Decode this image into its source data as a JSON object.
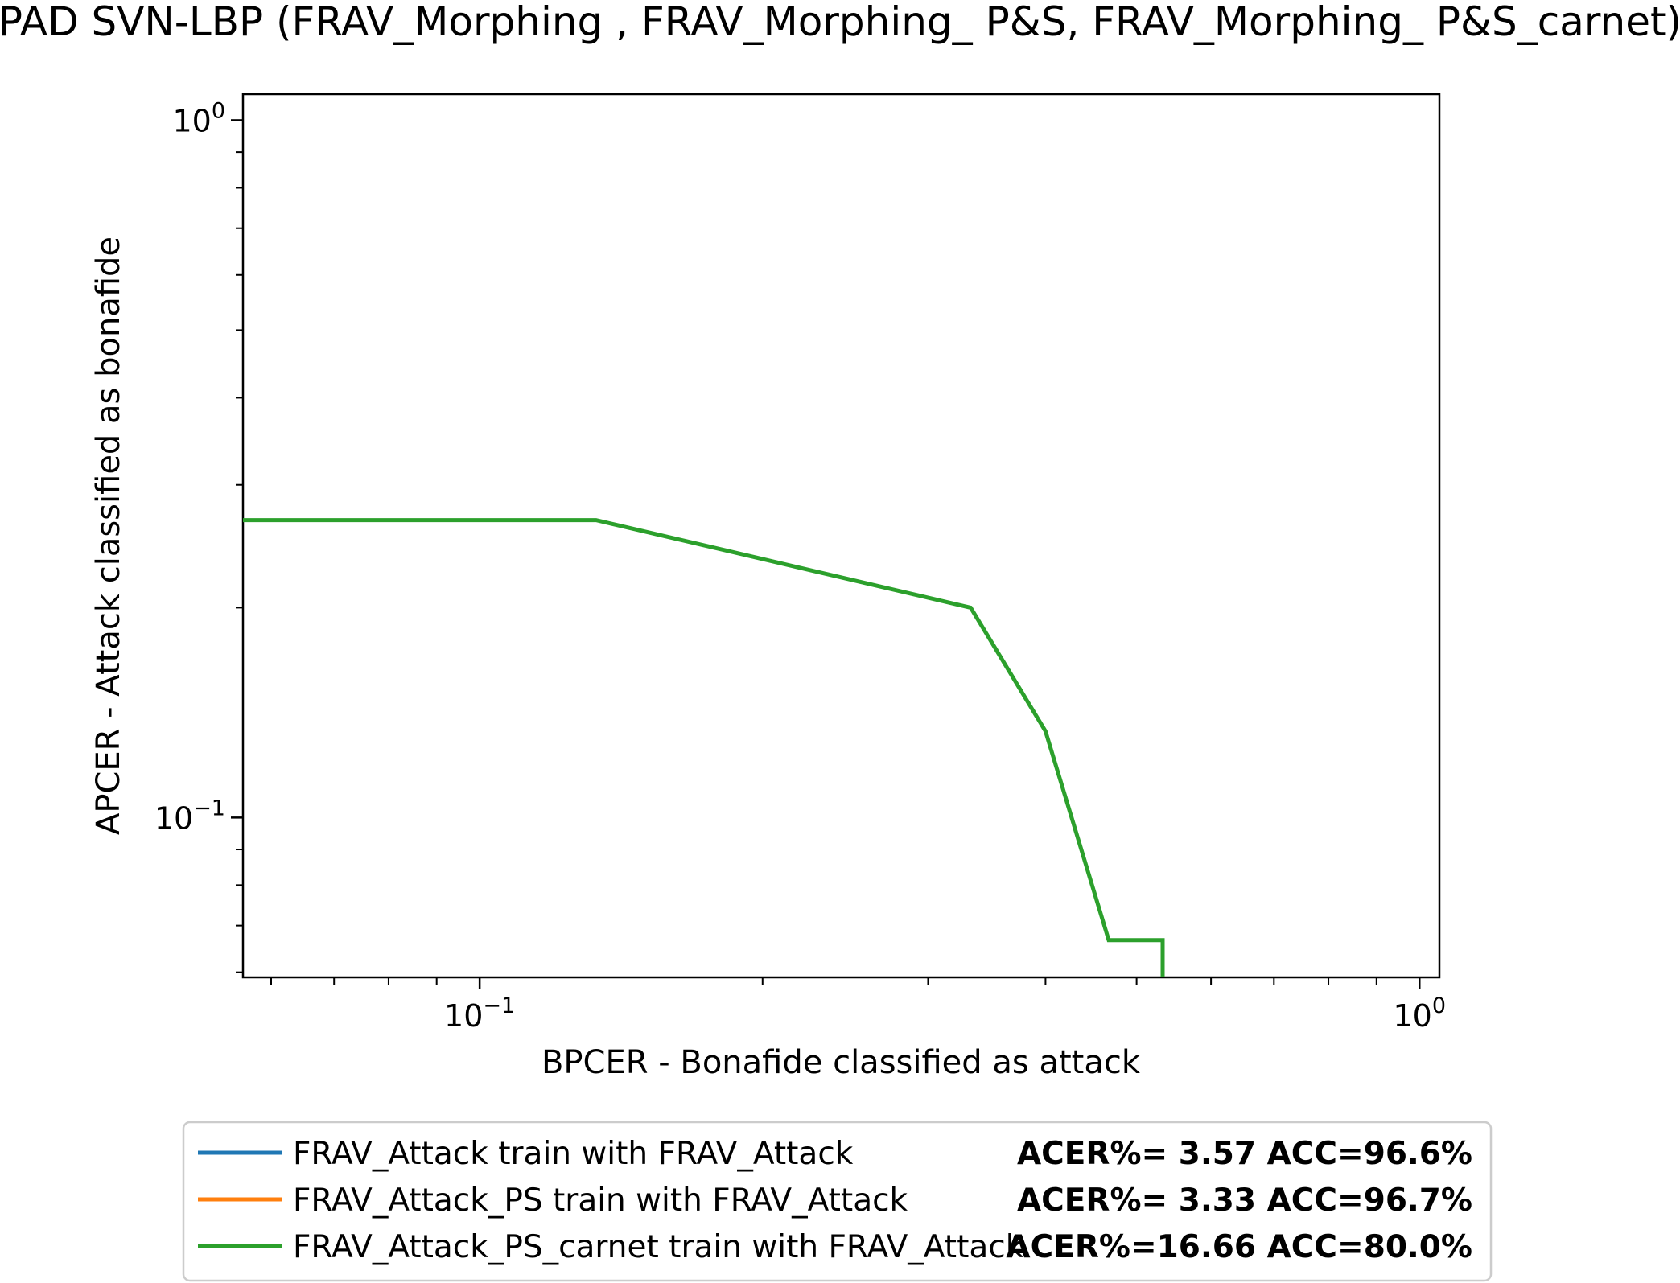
{
  "chart_data": {
    "type": "line",
    "title": "PAD SVN-LBP (FRAV_Morphing , FRAV_Morphing_ P&S,  FRAV_Morphing_ P&S_carnet)",
    "xlabel": "BPCER - Bonafide classified as attack",
    "ylabel": "APCER - Attack classified as bonafide",
    "x_scale": "log",
    "y_scale": "log",
    "xlim": [
      0.056,
      1.05
    ],
    "ylim": [
      0.059,
      1.09
    ],
    "x_ticks": [
      {
        "value": 0.1,
        "base": "10",
        "exp": "−1"
      },
      {
        "value": 1,
        "base": "10",
        "exp": "0"
      }
    ],
    "y_ticks": [
      {
        "value": 0.1,
        "base": "10",
        "exp": "−1"
      },
      {
        "value": 1,
        "base": "10",
        "exp": "0"
      }
    ],
    "grid": false,
    "legend_position": "bottom",
    "series": [
      {
        "name": "FRAV_Attack train with FRAV_Attack",
        "metrics": "ACER%= 3.57 ACC=96.6%",
        "color": "#1f77b4",
        "x": [],
        "y": []
      },
      {
        "name": "FRAV_Attack_PS train with FRAV_Attack",
        "metrics": "ACER%= 3.33 ACC=96.7%",
        "color": "#ff7f0e",
        "x": [],
        "y": []
      },
      {
        "name": "FRAV_Attack_PS_carnet train with FRAV_Attack",
        "metrics": "ACER%=16.66 ACC=80.0%",
        "color": "#2ca02c",
        "x": [
          0.056,
          0.133,
          0.333,
          0.4,
          0.467,
          0.533,
          0.533
        ],
        "y": [
          0.267,
          0.267,
          0.2,
          0.133,
          0.0667,
          0.0667,
          0.059
        ]
      }
    ]
  }
}
